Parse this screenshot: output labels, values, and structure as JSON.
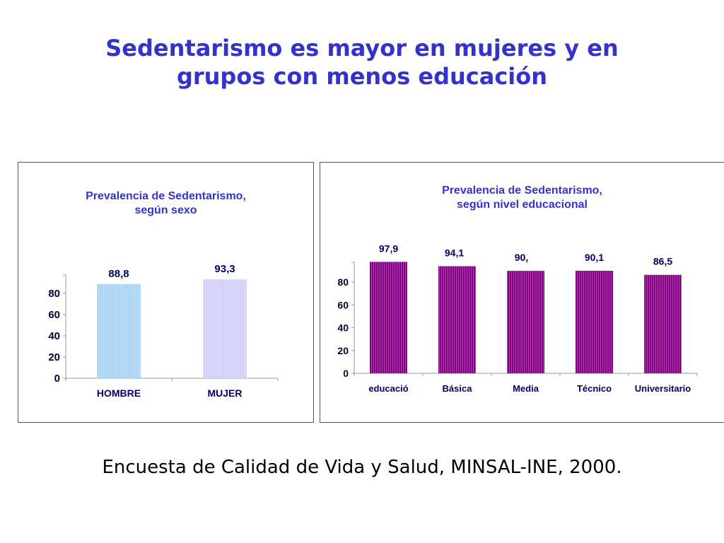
{
  "slide": {
    "title_line1": "Sedentarismo es mayor en mujeres y en",
    "title_line2": "grupos con menos educación",
    "source": "Encuesta de Calidad de Vida y Salud, MINSAL-INE, 2000.",
    "title_color": "#3333cc"
  },
  "chart_data": [
    {
      "type": "bar",
      "title_line1": "Prevalencia de Sedentarismo,",
      "title_line2": "según sexo",
      "categories": [
        "HOMBRE",
        "MUJER"
      ],
      "values": [
        88.8,
        93.3
      ],
      "data_labels": [
        "88,8",
        "93,3"
      ],
      "colors": [
        "#a9d4f5",
        "#d0d0fb"
      ],
      "yticks": [
        0,
        20,
        40,
        60,
        80
      ],
      "ylim": [
        0,
        100
      ],
      "grid": false,
      "legend": "none"
    },
    {
      "type": "bar",
      "title_line1": "Prevalencia de Sedentarismo,",
      "title_line2": "según nivel educacional",
      "categories": [
        "educació",
        "Básica",
        "Media",
        "Técnico",
        "Universitario"
      ],
      "values": [
        97.9,
        94.1,
        90,
        90.1,
        86.5
      ],
      "data_labels": [
        "97,9",
        "94,1",
        "90,",
        "90,1",
        "86,5"
      ],
      "colors": [
        "#880088",
        "#880088",
        "#880088",
        "#880088",
        "#880088"
      ],
      "yticks": [
        0,
        20,
        40,
        60,
        80
      ],
      "ylim": [
        0,
        100
      ],
      "grid": false,
      "legend": "none"
    }
  ]
}
